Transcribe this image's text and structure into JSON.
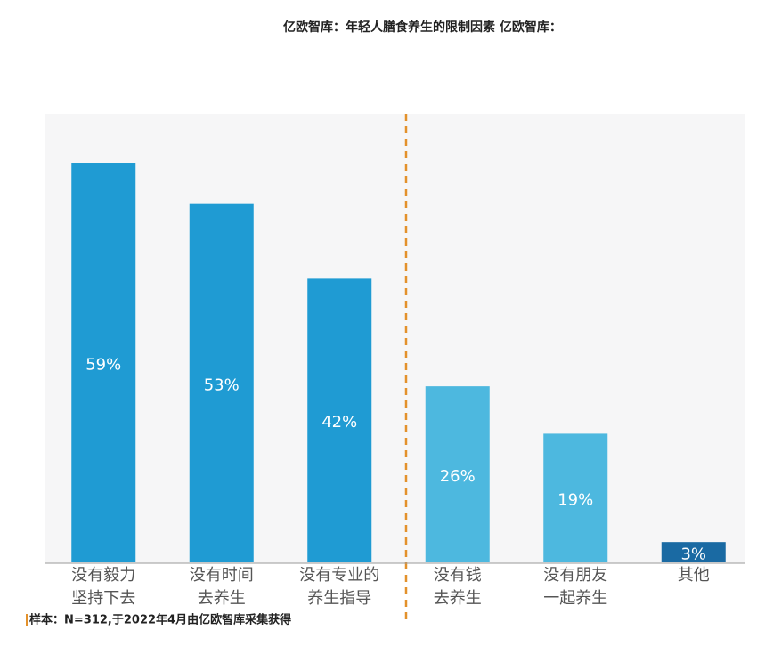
{
  "chart_data": {
    "type": "bar",
    "title": "亿欧智库：年轻人膳食养生的限制因素 亿欧智库：",
    "categories": [
      [
        "没有毅力",
        "坚持下去"
      ],
      [
        "没有时间",
        "去养生"
      ],
      [
        "没有专业的",
        "养生指导"
      ],
      [
        "没有钱",
        "去养生"
      ],
      [
        "没有朋友",
        "一起养生"
      ],
      [
        "其他"
      ]
    ],
    "values": [
      59,
      53,
      42,
      26,
      19,
      3
    ],
    "value_labels": [
      "59%",
      "53%",
      "42%",
      "26%",
      "19%",
      "3%"
    ],
    "colors": [
      "#1f9bd3",
      "#1f9bd3",
      "#1f9bd3",
      "#4db8df",
      "#4db8df",
      "#1a6aa3"
    ],
    "source": "样本：N=312,于2022年4月由亿欧智库采集获得"
  }
}
